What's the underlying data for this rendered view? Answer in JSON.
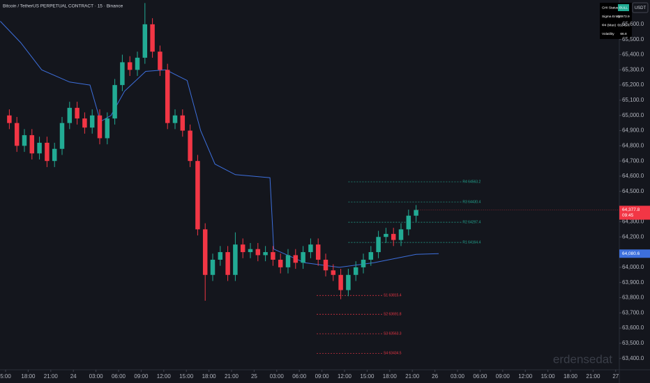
{
  "chart_data": {
    "type": "candlestick",
    "title": "Bitcoin / TetherUS PERPETUAL CONTRACT · 15 · Binance",
    "x": [
      0.5,
      1.5,
      2.5,
      3.5,
      4.5,
      5.5,
      6.5,
      7.5,
      8.5,
      9.5,
      10.5,
      11.5,
      12.5,
      13.5,
      14.5,
      15.5,
      16.5,
      17.5,
      18.5,
      19.5,
      20.5,
      21.5,
      22.5,
      23.5,
      24.5,
      25.5,
      26.5,
      27.5,
      28.5,
      29.5,
      30.5,
      31.5,
      32.5,
      33.5,
      34.5,
      35.5,
      36.5,
      37.5,
      38.5,
      39.5,
      40.5,
      41.5,
      42.5,
      43.5,
      44.5,
      45.5,
      46.5,
      47.5,
      48.5,
      49.5,
      50.5,
      51.5,
      52.5,
      53.5,
      54.5
    ],
    "open": [
      65000,
      64950,
      64800,
      64870,
      64750,
      64820,
      64700,
      64780,
      64950,
      65050,
      64980,
      64920,
      65000,
      64850,
      64980,
      65200,
      65350,
      65300,
      65380,
      65600,
      65420,
      65300,
      64950,
      65000,
      64900,
      64700,
      64250,
      63950,
      64050,
      64100,
      63950,
      64150,
      64100,
      64120,
      64080,
      64100,
      64050,
      64000,
      64080,
      64030,
      64100,
      64150,
      64050,
      63980,
      63950,
      63850,
      63950,
      64000,
      64050,
      64100,
      64200,
      64220,
      64180,
      64250,
      64340
    ],
    "high": [
      65040,
      64990,
      64910,
      64910,
      64860,
      64860,
      64820,
      64990,
      65090,
      65090,
      65020,
      65040,
      65040,
      65020,
      65240,
      65400,
      65390,
      65420,
      65740,
      65640,
      65460,
      65340,
      65040,
      65040,
      64940,
      64740,
      64290,
      64090,
      64140,
      64140,
      64230,
      64190,
      64160,
      64160,
      64140,
      64140,
      64090,
      64120,
      64120,
      64140,
      64190,
      64190,
      64090,
      64020,
      63990,
      63990,
      64040,
      64090,
      64140,
      64240,
      64260,
      64260,
      64290,
      64380,
      64410
    ],
    "low": [
      64910,
      64760,
      64760,
      64710,
      64710,
      64660,
      64660,
      64740,
      64910,
      64940,
      64880,
      64880,
      64810,
      64810,
      64940,
      65160,
      65260,
      65260,
      65340,
      65380,
      65260,
      64910,
      64910,
      64860,
      64660,
      64210,
      63780,
      63910,
      64010,
      63910,
      63910,
      64060,
      64060,
      64040,
      64040,
      64010,
      63960,
      63960,
      63990,
      63990,
      64060,
      64010,
      63940,
      63910,
      63790,
      63810,
      63910,
      63960,
      64010,
      64060,
      64160,
      64140,
      64140,
      64210,
      64300
    ],
    "close": [
      64950,
      64800,
      64870,
      64750,
      64820,
      64700,
      64780,
      64950,
      65050,
      64980,
      64920,
      65000,
      64850,
      64980,
      65200,
      65350,
      65300,
      65380,
      65600,
      65420,
      65300,
      64950,
      65000,
      64900,
      64700,
      64250,
      63950,
      64050,
      64100,
      63950,
      64150,
      64100,
      64120,
      64080,
      64100,
      64050,
      64000,
      64080,
      64030,
      64100,
      64150,
      64050,
      63980,
      63950,
      63850,
      63950,
      64000,
      64050,
      64100,
      64200,
      64220,
      64180,
      64250,
      64340,
      64377.8
    ],
    "up_color": "#22ab94",
    "down_color": "#f23645",
    "xlim": [
      -0.74,
      81.48
    ],
    "ylim": [
      63330,
      65760
    ],
    "grid": false,
    "xticks": [
      {
        "value": 0,
        "label": "5:00"
      },
      {
        "value": 3,
        "label": "18:00"
      },
      {
        "value": 6,
        "label": "21:00"
      },
      {
        "value": 9,
        "label": "24"
      },
      {
        "value": 12,
        "label": "03:00"
      },
      {
        "value": 15,
        "label": "06:00"
      },
      {
        "value": 18,
        "label": "09:00"
      },
      {
        "value": 21,
        "label": "12:00"
      },
      {
        "value": 24,
        "label": "15:00"
      },
      {
        "value": 27,
        "label": "18:00"
      },
      {
        "value": 30,
        "label": "21:00"
      },
      {
        "value": 33,
        "label": "25"
      },
      {
        "value": 36,
        "label": "03:00"
      },
      {
        "value": 39,
        "label": "06:00"
      },
      {
        "value": 42,
        "label": "09:00"
      },
      {
        "value": 45,
        "label": "12:00"
      },
      {
        "value": 48,
        "label": "15:00"
      },
      {
        "value": 51,
        "label": "18:00"
      },
      {
        "value": 54,
        "label": "21:00"
      },
      {
        "value": 57,
        "label": "26"
      },
      {
        "value": 60,
        "label": "03:00"
      },
      {
        "value": 63,
        "label": "06:00"
      },
      {
        "value": 66,
        "label": "09:00"
      },
      {
        "value": 69,
        "label": "12:00"
      },
      {
        "value": 72,
        "label": "15:00"
      },
      {
        "value": 75,
        "label": "18:00"
      },
      {
        "value": 78,
        "label": "21:00"
      },
      {
        "value": 81,
        "label": "27"
      }
    ],
    "yticks": [
      {
        "value": 65600,
        "label": "65,600.0"
      },
      {
        "value": 65500,
        "label": "65,500.0"
      },
      {
        "value": 65400,
        "label": "65,400.0"
      },
      {
        "value": 65300,
        "label": "65,300.0"
      },
      {
        "value": 65200,
        "label": "65,200.0"
      },
      {
        "value": 65100,
        "label": "65,100.0"
      },
      {
        "value": 65000,
        "label": "65,000.0"
      },
      {
        "value": 64900,
        "label": "64,900.0"
      },
      {
        "value": 64800,
        "label": "64,800.0"
      },
      {
        "value": 64700,
        "label": "64,700.0"
      },
      {
        "value": 64600,
        "label": "64,600.0"
      },
      {
        "value": 64500,
        "label": "64,500.0"
      },
      {
        "value": 64300,
        "label": "64,300.0"
      },
      {
        "value": 64200,
        "label": "64,200.0"
      },
      {
        "value": 64000,
        "label": "64,000.0"
      },
      {
        "value": 63900,
        "label": "63,900.0"
      },
      {
        "value": 63800,
        "label": "63,800.0"
      },
      {
        "value": 63700,
        "label": "63,700.0"
      },
      {
        "value": 63600,
        "label": "63,600.0"
      },
      {
        "value": 63500,
        "label": "63,500.0"
      },
      {
        "value": 63400,
        "label": "63,400.0"
      }
    ],
    "vwap": {
      "color": "#3d6fdc",
      "x": [
        -0.7,
        2.0,
        4.8,
        8.5,
        11.2,
        12.6,
        14.0,
        15.8,
        18.6,
        21.3,
        24.1,
        25.9,
        27.8,
        30.5,
        35.1,
        35.6,
        39.7,
        44.3,
        48.9,
        54.5,
        57.5
      ],
      "values": [
        65620,
        65480,
        65300,
        65220,
        65200,
        64960,
        65000,
        65160,
        65290,
        65300,
        65230,
        64900,
        64680,
        64610,
        64590,
        64120,
        64030,
        64000,
        64030,
        64085,
        64090
      ]
    },
    "levels": [
      {
        "value": 64563,
        "label": "R4 64563.2",
        "color": "#22ab94",
        "from": 45.5,
        "to": 60.5
      },
      {
        "value": 64430,
        "label": "R3 64430.4",
        "color": "#22ab94",
        "from": 45.5,
        "to": 60.5
      },
      {
        "value": 64297,
        "label": "R2 64297.4",
        "color": "#22ab94",
        "from": 45.5,
        "to": 60.5
      },
      {
        "value": 64164,
        "label": "R1 64164.4",
        "color": "#22ab94",
        "from": 45.5,
        "to": 60.5
      },
      {
        "value": 63815,
        "label": "S1 63815.4",
        "color": "#f23645",
        "from": 41.3,
        "to": 50.0
      },
      {
        "value": 63691,
        "label": "S2 63691.8",
        "color": "#f23645",
        "from": 41.3,
        "to": 50.0
      },
      {
        "value": 63563,
        "label": "S3 63563.3",
        "color": "#f23645",
        "from": 41.3,
        "to": 50.0
      },
      {
        "value": 63434,
        "label": "S4 63434.5",
        "color": "#f23645",
        "from": 41.3,
        "to": 50.0
      }
    ],
    "last_price_label": "64,377.8",
    "countdown": "09:45",
    "vwap_label": "64,080.6"
  },
  "status_table": {
    "rows": [
      [
        "GHI Status",
        "BULL"
      ],
      [
        "Sigma Entry",
        "63973.9"
      ],
      [
        "Φ4 (Max)",
        "65241.7"
      ],
      [
        "Volatility",
        "66.8"
      ]
    ]
  },
  "currency_button": "USDT",
  "watermark": "erdensedat"
}
